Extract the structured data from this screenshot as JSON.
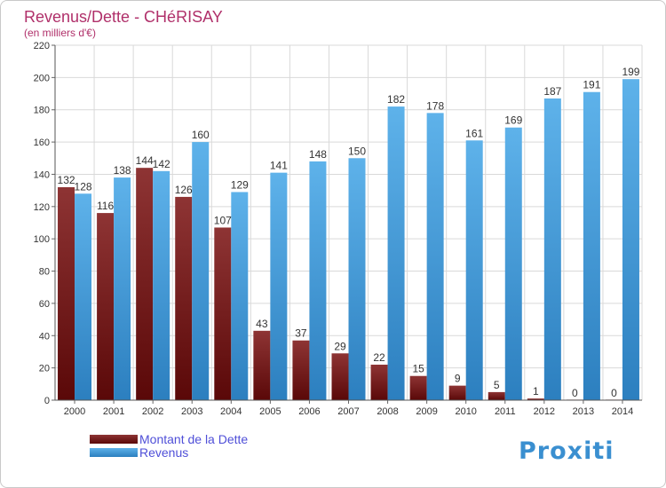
{
  "chart_data": {
    "type": "bar",
    "title": "Revenus/Dette - CHéRISAY",
    "subtitle": "(en milliers d'€)",
    "xlabel": "",
    "ylabel": "",
    "ylim": [
      0,
      220
    ],
    "yticks": [
      0,
      20,
      40,
      60,
      80,
      100,
      120,
      140,
      160,
      180,
      200,
      220
    ],
    "grid": true,
    "categories": [
      "2000",
      "2001",
      "2002",
      "2003",
      "2004",
      "2005",
      "2006",
      "2007",
      "2008",
      "2009",
      "2010",
      "2011",
      "2012",
      "2013",
      "2014"
    ],
    "series": [
      {
        "name": "Montant de la Dette",
        "color": "#7a2222",
        "values": [
          132,
          116,
          144,
          126,
          107,
          43,
          37,
          29,
          22,
          15,
          9,
          5,
          1,
          0,
          0
        ]
      },
      {
        "name": "Revenus",
        "color": "#4a9fdc",
        "values": [
          128,
          138,
          142,
          160,
          129,
          141,
          148,
          150,
          182,
          178,
          161,
          169,
          187,
          191,
          199
        ]
      }
    ],
    "legend_position": "bottom-left"
  },
  "colors": {
    "title": "#b0306a",
    "legend_text": "#4f4fd8",
    "axis_text": "#333333",
    "grid": "#d9d9d9"
  },
  "logo": "Proxiti"
}
